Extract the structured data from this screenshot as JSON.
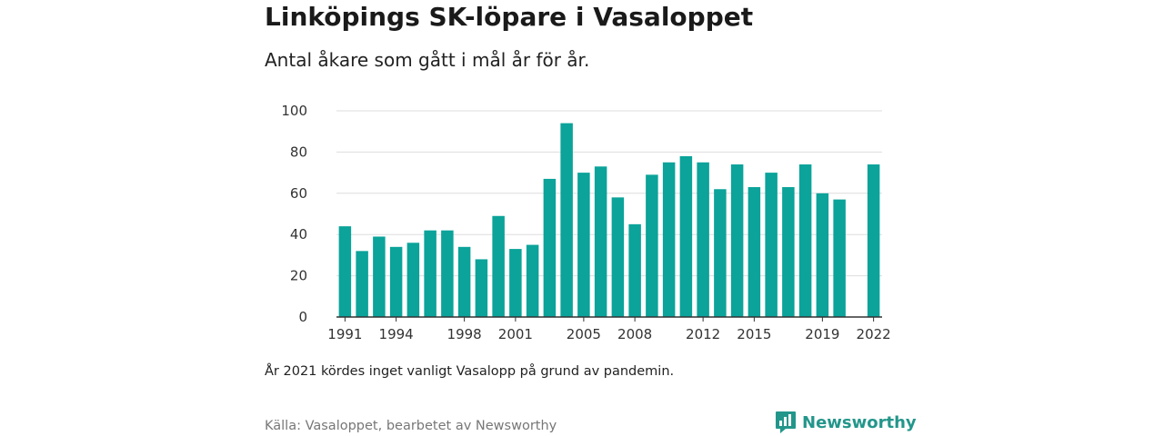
{
  "title": "Linköpings SK-löpare i Vasaloppet",
  "subtitle": "Antal åkare som gått i mål år för år.",
  "note": "År 2021 kördes inget vanligt Vasalopp på grund av pandemin.",
  "source": "Källa: Vasaloppet, bearbetet av Newsworthy",
  "brand": {
    "name": "Newsworthy",
    "icon": "newsworthy-logo-icon",
    "color": "#23968b"
  },
  "chart_data": {
    "type": "bar",
    "title": "Linköpings SK-löpare i Vasaloppet",
    "subtitle": "Antal åkare som gått i mål år för år.",
    "xlabel": "",
    "ylabel": "",
    "ylim": [
      0,
      100
    ],
    "yticks": [
      0,
      20,
      40,
      60,
      80,
      100
    ],
    "xtick_labels": [
      "1991",
      "1994",
      "1998",
      "2001",
      "2005",
      "2008",
      "2012",
      "2015",
      "2019",
      "2022"
    ],
    "grid": true,
    "bar_color": "#0ba39a",
    "categories": [
      "1991",
      "1992",
      "1993",
      "1994",
      "1995",
      "1996",
      "1997",
      "1998",
      "1999",
      "2000",
      "2001",
      "2002",
      "2003",
      "2004",
      "2005",
      "2006",
      "2007",
      "2008",
      "2009",
      "2010",
      "2011",
      "2012",
      "2013",
      "2014",
      "2015",
      "2016",
      "2017",
      "2018",
      "2019",
      "2020",
      "2021",
      "2022"
    ],
    "values": [
      44,
      32,
      39,
      34,
      36,
      42,
      42,
      34,
      28,
      49,
      33,
      35,
      67,
      94,
      70,
      73,
      58,
      45,
      69,
      75,
      78,
      75,
      62,
      74,
      63,
      70,
      63,
      74,
      60,
      57,
      null,
      74
    ]
  }
}
